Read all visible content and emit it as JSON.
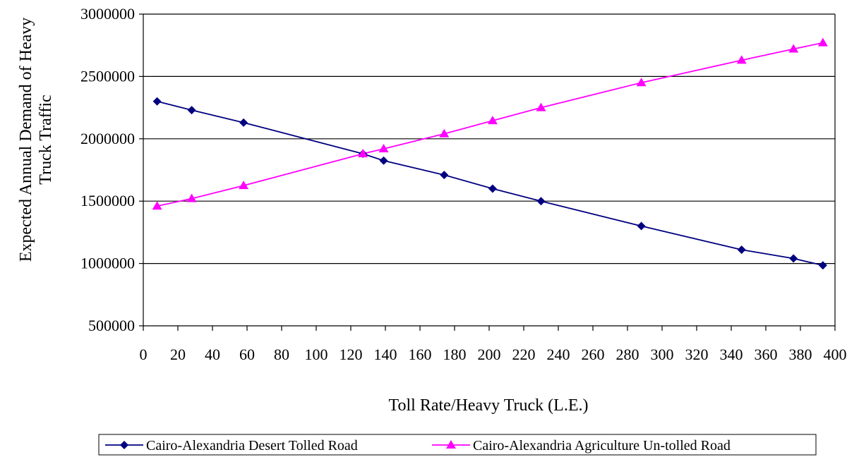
{
  "chart_data": {
    "type": "line",
    "title": "",
    "xlabel": "Toll Rate/Heavy Truck (L.E.)",
    "ylabel": "Expected Annual Demand of Heavy Truck Traffic",
    "xlim": [
      0,
      400
    ],
    "ylim": [
      500000,
      3000000
    ],
    "xticks": [
      0,
      20,
      40,
      60,
      80,
      100,
      120,
      140,
      160,
      180,
      200,
      220,
      240,
      260,
      280,
      300,
      320,
      340,
      360,
      380,
      400
    ],
    "yticks": [
      500000,
      1000000,
      1500000,
      2000000,
      2500000,
      3000000
    ],
    "grid": "horizontal",
    "legend_position": "bottom",
    "series": [
      {
        "name": "Cairo-Alexandria Desert Tolled Road",
        "color": "#000080",
        "marker": "diamond",
        "x": [
          8,
          28,
          58,
          127,
          139,
          174,
          202,
          230,
          288,
          346,
          376,
          393
        ],
        "y": [
          2300000,
          2230000,
          2130000,
          1880000,
          1825000,
          1710000,
          1600000,
          1500000,
          1300000,
          1110000,
          1040000,
          985000
        ]
      },
      {
        "name": "Cairo-Alexandria Agriculture Un-tolled Road",
        "color": "#ff00ff",
        "marker": "triangle",
        "x": [
          8,
          28,
          58,
          127,
          139,
          174,
          202,
          230,
          288,
          346,
          376,
          393
        ],
        "y": [
          1460000,
          1520000,
          1625000,
          1880000,
          1920000,
          2040000,
          2145000,
          2250000,
          2450000,
          2630000,
          2720000,
          2770000
        ]
      }
    ]
  }
}
